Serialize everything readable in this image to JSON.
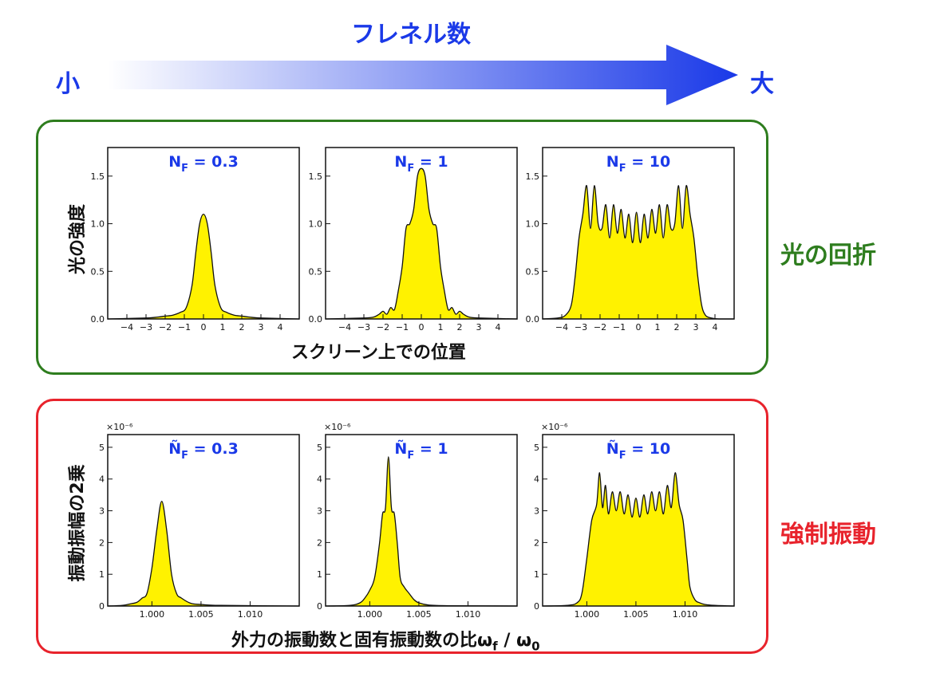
{
  "header": {
    "title": "フレネル数",
    "small_label": "小",
    "large_label": "大",
    "arrow_color": "#1a39e8"
  },
  "sections": {
    "diffraction": {
      "side_label": "光の回折",
      "ylabel": "光の強度",
      "xlabel": "スクリーン上での位置",
      "color": "#2e7d1e"
    },
    "oscillation": {
      "side_label": "強制振動",
      "ylabel": "振動振幅の2乗",
      "xlabel": "外力の振動数と固有振動数の比ω_f / ω_0",
      "color": "#e8232c"
    }
  },
  "chart_data": [
    {
      "type": "area",
      "group": "diffraction",
      "title": "N_F = 0.3",
      "xlim": [
        -5,
        5
      ],
      "ylim": [
        0,
        1.8
      ],
      "xticks": [
        -4,
        -3,
        -2,
        -1,
        0,
        1,
        2,
        3,
        4
      ],
      "xtick_labels": [
        "−4",
        "−3",
        "−2",
        "−1",
        "0",
        "1",
        "2",
        "3",
        "4"
      ],
      "yticks": [
        0.0,
        0.5,
        1.0,
        1.5
      ],
      "ytick_labels": [
        "0.0",
        "0.5",
        "1.0",
        "1.5"
      ],
      "x": [
        -5,
        -3,
        -2.4,
        -2,
        -1.6,
        -1.2,
        -0.9,
        -0.6,
        -0.4,
        -0.2,
        0,
        0.2,
        0.4,
        0.6,
        0.9,
        1.2,
        1.6,
        2,
        2.4,
        3,
        5
      ],
      "y": [
        0,
        0.01,
        0.02,
        0.03,
        0.04,
        0.07,
        0.12,
        0.35,
        0.7,
        1.0,
        1.1,
        1.0,
        0.7,
        0.35,
        0.12,
        0.07,
        0.04,
        0.03,
        0.02,
        0.01,
        0
      ]
    },
    {
      "type": "area",
      "group": "diffraction",
      "title": "N_F = 1",
      "xlim": [
        -5,
        5
      ],
      "ylim": [
        0,
        1.8
      ],
      "xticks": [
        -4,
        -3,
        -2,
        -1,
        0,
        1,
        2,
        3,
        4
      ],
      "xtick_labels": [
        "−4",
        "−3",
        "−2",
        "−1",
        "0",
        "1",
        "2",
        "3",
        "4"
      ],
      "yticks": [
        0.0,
        0.5,
        1.0,
        1.5
      ],
      "ytick_labels": [
        "0.0",
        "0.5",
        "1.0",
        "1.5"
      ],
      "x": [
        -5,
        -3,
        -2.5,
        -2.2,
        -2,
        -1.8,
        -1.6,
        -1.4,
        -1.2,
        -1,
        -0.8,
        -0.6,
        -0.4,
        -0.2,
        0,
        0.2,
        0.4,
        0.6,
        0.8,
        1,
        1.2,
        1.4,
        1.6,
        1.8,
        2,
        2.2,
        2.5,
        3,
        5
      ],
      "y": [
        0,
        0.01,
        0.02,
        0.05,
        0.08,
        0.05,
        0.12,
        0.1,
        0.3,
        0.55,
        0.95,
        1.0,
        1.15,
        1.5,
        1.58,
        1.5,
        1.15,
        1.0,
        0.95,
        0.55,
        0.3,
        0.1,
        0.12,
        0.05,
        0.08,
        0.05,
        0.02,
        0.01,
        0
      ]
    },
    {
      "type": "area",
      "group": "diffraction",
      "title": "N_F = 10",
      "xlim": [
        -5,
        5
      ],
      "ylim": [
        0,
        1.8
      ],
      "xticks": [
        -4,
        -3,
        -2,
        -1,
        0,
        1,
        2,
        3,
        4
      ],
      "xtick_labels": [
        "−4",
        "−3",
        "−2",
        "−1",
        "0",
        "1",
        "2",
        "3",
        "4"
      ],
      "yticks": [
        0.0,
        0.5,
        1.0,
        1.5
      ],
      "ytick_labels": [
        "0.0",
        "0.5",
        "1.0",
        "1.5"
      ],
      "x": [
        -5,
        -4.2,
        -3.8,
        -3.5,
        -3.3,
        -3.1,
        -2.9,
        -2.7,
        -2.5,
        -2.3,
        -2.1,
        -1.9,
        -1.7,
        -1.5,
        -1.3,
        -1.1,
        -0.9,
        -0.7,
        -0.5,
        -0.3,
        -0.1,
        0.1,
        0.3,
        0.5,
        0.7,
        0.9,
        1.1,
        1.3,
        1.5,
        1.7,
        1.9,
        2.1,
        2.3,
        2.5,
        2.7,
        2.9,
        3.1,
        3.3,
        3.5,
        3.8,
        4.2,
        5
      ],
      "y": [
        0,
        0.01,
        0.04,
        0.15,
        0.45,
        0.85,
        1.1,
        1.4,
        0.95,
        1.4,
        1.0,
        0.95,
        1.2,
        0.85,
        1.2,
        0.9,
        1.15,
        0.85,
        1.1,
        0.8,
        1.12,
        0.8,
        1.1,
        0.85,
        1.15,
        0.9,
        1.2,
        0.85,
        1.2,
        0.95,
        1.0,
        1.4,
        0.95,
        1.4,
        1.1,
        0.85,
        0.45,
        0.15,
        0.04,
        0.01,
        0,
        0
      ]
    },
    {
      "type": "area",
      "group": "oscillation",
      "title": "Ñ_F = 0.3",
      "y_multiplier_label": "×10⁻⁶",
      "xlim": [
        0.9955,
        1.015
      ],
      "ylim": [
        0,
        5.4
      ],
      "xticks": [
        1.0,
        1.005,
        1.01
      ],
      "xtick_labels": [
        "1.000",
        "1.005",
        "1.010"
      ],
      "yticks": [
        0,
        1,
        2,
        3,
        4,
        5
      ],
      "ytick_labels": [
        "0",
        "1",
        "2",
        "3",
        "4",
        "5"
      ],
      "x": [
        0.9955,
        0.997,
        0.998,
        0.9985,
        0.999,
        0.9995,
        1.0,
        1.0005,
        1.001,
        1.0015,
        1.002,
        1.0025,
        1.003,
        1.004,
        1.005,
        1.007,
        1.015
      ],
      "y": [
        0,
        0.02,
        0.08,
        0.12,
        0.25,
        0.4,
        1.2,
        2.4,
        3.3,
        2.4,
        1.0,
        0.4,
        0.25,
        0.08,
        0.05,
        0.02,
        0
      ]
    },
    {
      "type": "area",
      "group": "oscillation",
      "title": "Ñ_F = 1",
      "y_multiplier_label": "×10⁻⁶",
      "xlim": [
        0.9955,
        1.015
      ],
      "ylim": [
        0,
        5.4
      ],
      "xticks": [
        1.0,
        1.005,
        1.01
      ],
      "xtick_labels": [
        "1.000",
        "1.005",
        "1.010"
      ],
      "yticks": [
        0,
        1,
        2,
        3,
        4,
        5
      ],
      "ytick_labels": [
        "0",
        "1",
        "2",
        "3",
        "4",
        "5"
      ],
      "x": [
        0.9955,
        0.998,
        0.999,
        0.9995,
        1.0,
        1.0005,
        1.001,
        1.0013,
        1.0016,
        1.0019,
        1.0022,
        1.0025,
        1.0028,
        1.0031,
        1.0035,
        1.004,
        1.0045,
        1.005,
        1.006,
        1.008,
        1.015
      ],
      "y": [
        0,
        0.02,
        0.1,
        0.25,
        0.5,
        0.9,
        2.0,
        2.9,
        3.1,
        4.7,
        3.1,
        2.9,
        2.0,
        0.9,
        0.6,
        0.4,
        0.2,
        0.1,
        0.03,
        0.01,
        0
      ]
    },
    {
      "type": "area",
      "group": "oscillation",
      "title": "Ñ_F = 10",
      "y_multiplier_label": "×10⁻⁶",
      "xlim": [
        0.9955,
        1.015
      ],
      "ylim": [
        0,
        5.4
      ],
      "xticks": [
        1.0,
        1.005,
        1.01
      ],
      "xtick_labels": [
        "1.000",
        "1.005",
        "1.010"
      ],
      "yticks": [
        0,
        1,
        2,
        3,
        4,
        5
      ],
      "ytick_labels": [
        "0",
        "1",
        "2",
        "3",
        "4",
        "5"
      ],
      "x": [
        0.9955,
        0.998,
        0.999,
        0.9995,
        1.0,
        1.0005,
        1.001,
        1.0013,
        1.0016,
        1.0019,
        1.0022,
        1.0026,
        1.003,
        1.0034,
        1.0038,
        1.0042,
        1.0046,
        1.005,
        1.0054,
        1.0058,
        1.0062,
        1.0066,
        1.007,
        1.0074,
        1.0078,
        1.0082,
        1.0086,
        1.009,
        1.0094,
        1.0098,
        1.0102,
        1.0105,
        1.011,
        1.0115,
        1.012,
        1.013,
        1.015
      ],
      "y": [
        0,
        0.02,
        0.1,
        0.4,
        1.5,
        2.7,
        3.2,
        4.2,
        3.1,
        3.8,
        2.9,
        3.6,
        3.0,
        3.6,
        2.9,
        3.5,
        2.8,
        3.4,
        2.8,
        3.5,
        2.9,
        3.6,
        3.0,
        3.6,
        2.9,
        3.8,
        3.1,
        4.2,
        3.2,
        2.7,
        1.5,
        0.6,
        0.2,
        0.1,
        0.05,
        0.02,
        0
      ]
    }
  ]
}
